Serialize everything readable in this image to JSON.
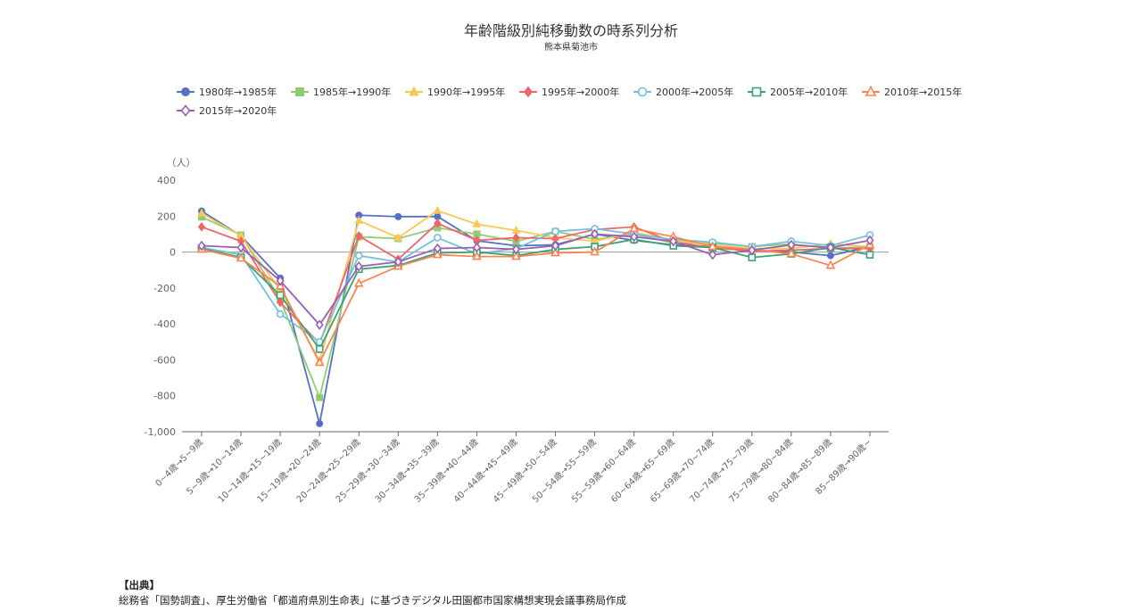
{
  "chart_data": {
    "type": "line",
    "title": "年齢階級別純移動数の時系列分析",
    "subtitle": "熊本県菊池市",
    "ylabel": "（人）",
    "xlabel": "",
    "ylim": [
      -1000,
      400
    ],
    "yticks": [
      400,
      200,
      0,
      -200,
      -400,
      -600,
      -800,
      -1000
    ],
    "ytick_labels": [
      "400",
      "200",
      "0",
      "-200",
      "-400",
      "-600",
      "-800",
      "-1,000"
    ],
    "legend_position": "top-left",
    "grid": false,
    "categories": [
      "0~4歳→5~9歳",
      "5~9歳→10~14歳",
      "10~14歳→15~19歳",
      "15~19歳→20~24歳",
      "20~24歳→25~29歳",
      "25~29歳→30~34歳",
      "30~34歳→35~39歳",
      "35~39歳→40~44歳",
      "40~44歳→45~49歳",
      "45~49歳→50~54歳",
      "50~54歳→55~59歳",
      "55~59歳→60~64歳",
      "60~64歳→65~69歳",
      "65~69歳→70~74歳",
      "70~74歳→75~79歳",
      "75~79歳→80~84歳",
      "80~84歳→85~89歳",
      "85~89歳→90歳~"
    ],
    "series": [
      {
        "name": "1980年→1985年",
        "color": "#5470c6",
        "marker": "circle",
        "filled": true,
        "values": [
          228,
          90,
          -145,
          -955,
          205,
          197,
          198,
          63,
          35,
          40,
          100,
          65,
          40,
          30,
          10,
          0,
          -20,
          30
        ]
      },
      {
        "name": "1985年→1990年",
        "color": "#91cc75",
        "marker": "square",
        "filled": true,
        "values": [
          195,
          95,
          -265,
          -810,
          85,
          75,
          135,
          100,
          60,
          115,
          70,
          100,
          50,
          50,
          30,
          45,
          20,
          30
        ]
      },
      {
        "name": "1990年→1995年",
        "color": "#fac858",
        "marker": "triangle",
        "filled": true,
        "values": [
          215,
          90,
          -210,
          -605,
          175,
          80,
          230,
          155,
          120,
          80,
          60,
          110,
          65,
          40,
          20,
          20,
          45,
          30
        ]
      },
      {
        "name": "1995年→2000年",
        "color": "#ee6666",
        "marker": "diamond",
        "filled": true,
        "values": [
          140,
          60,
          -280,
          -510,
          90,
          -40,
          160,
          65,
          80,
          75,
          125,
          140,
          55,
          25,
          5,
          10,
          20,
          20
        ]
      },
      {
        "name": "2000年→2005年",
        "color": "#73c0de",
        "marker": "circle",
        "filled": false,
        "values": [
          25,
          -15,
          -345,
          -500,
          -20,
          -55,
          80,
          -10,
          20,
          115,
          130,
          100,
          70,
          55,
          30,
          60,
          35,
          95
        ]
      },
      {
        "name": "2005年→2010年",
        "color": "#3ba272",
        "marker": "square",
        "filled": false,
        "values": [
          20,
          -30,
          -240,
          -540,
          -95,
          -75,
          -5,
          0,
          -20,
          15,
          30,
          70,
          35,
          25,
          -30,
          -10,
          25,
          -15
        ]
      },
      {
        "name": "2010年→2015年",
        "color": "#fc8452",
        "marker": "triangle",
        "filled": false,
        "values": [
          15,
          -35,
          -190,
          -615,
          -175,
          -80,
          -15,
          -25,
          -25,
          -5,
          0,
          130,
          85,
          30,
          15,
          -10,
          -75,
          40
        ]
      },
      {
        "name": "2015年→2020年",
        "color": "#9a60b4",
        "marker": "diamond",
        "filled": false,
        "values": [
          35,
          25,
          -160,
          -405,
          -80,
          -55,
          20,
          25,
          15,
          35,
          100,
          85,
          60,
          -15,
          10,
          40,
          25,
          65
        ]
      }
    ]
  },
  "source": {
    "label": "【出典】",
    "text": "総務省「国勢調査」、厚生労働省「都道府県別生命表」に基づきデジタル田園都市国家構想実現会議事務局作成"
  }
}
